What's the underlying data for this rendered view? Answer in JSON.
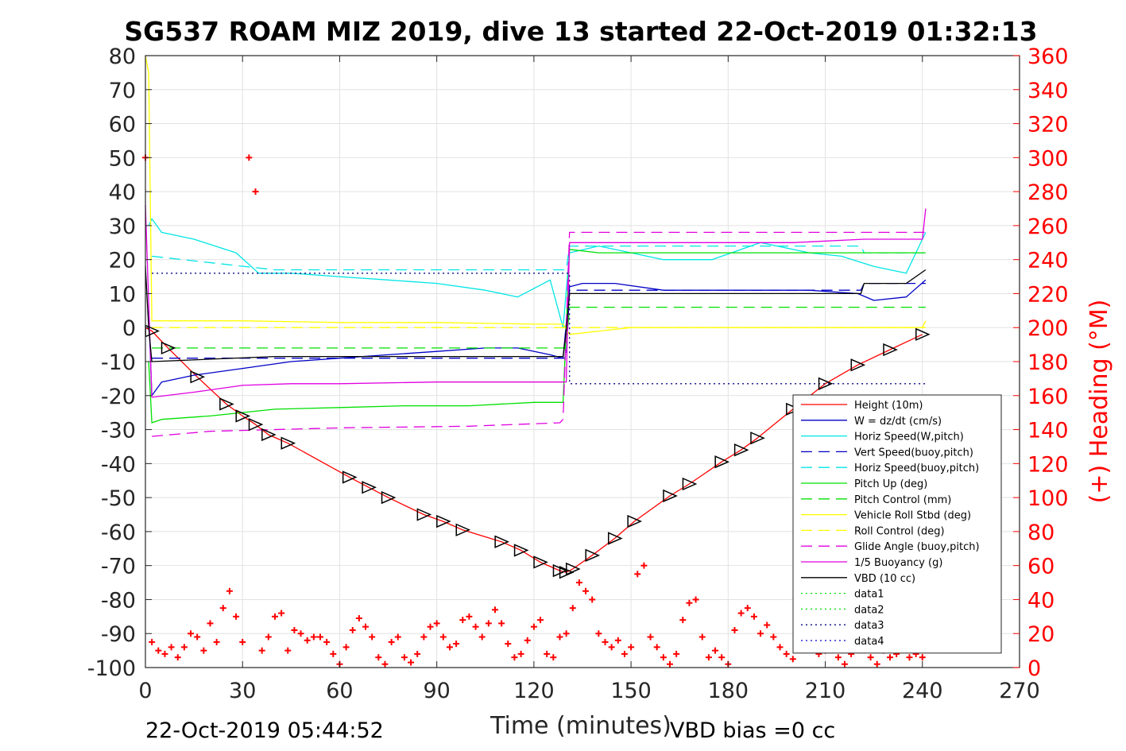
{
  "chart_data": {
    "type": "line",
    "title": "SG537 ROAM MIZ 2019, dive 13 started 22-Oct-2019 01:32:13",
    "xlabel": "Time (minutes)",
    "ylabel": "",
    "y2label": "(+) Heading (°M)",
    "xlim": [
      0,
      270
    ],
    "ylim": [
      -100,
      80
    ],
    "y2lim": [
      0,
      360
    ],
    "xticks": [
      0,
      30,
      60,
      90,
      120,
      150,
      180,
      210,
      240,
      270
    ],
    "yticks": [
      -100,
      -90,
      -80,
      -70,
      -60,
      -50,
      -40,
      -30,
      -20,
      -10,
      0,
      10,
      20,
      30,
      40,
      50,
      60,
      70,
      80
    ],
    "y2ticks": [
      0,
      20,
      40,
      60,
      80,
      100,
      120,
      140,
      160,
      180,
      200,
      220,
      240,
      260,
      280,
      300,
      320,
      340,
      360
    ],
    "grid": true,
    "legend_position": "lower-right",
    "footer_left": "22-Oct-2019 05:44:52",
    "footer_right": "VBD bias =0 cc",
    "colors": {
      "red": "#ff0000",
      "blue": "#0000c8",
      "cyan": "#00e5e5",
      "green": "#00e000",
      "yellow": "#ffff00",
      "magenta": "#e000e0",
      "black": "#000000"
    },
    "series": [
      {
        "name": "Height (10m)",
        "color": "#ff0000",
        "style": "solid",
        "x": [
          0,
          2,
          7,
          16,
          25,
          30,
          34,
          38,
          44,
          63,
          69,
          75,
          86,
          92,
          98,
          110,
          116,
          122,
          128,
          130,
          132,
          138,
          145,
          151,
          162,
          168,
          178,
          184,
          189,
          200,
          210,
          220,
          230,
          240
        ],
        "y": [
          0,
          -1,
          -6,
          -14.5,
          -22.5,
          -26,
          -28.5,
          -31.5,
          -34,
          -44,
          -47,
          -50,
          -55,
          -57,
          -59.5,
          -63,
          -65.5,
          -69,
          -71.5,
          -72,
          -71,
          -67,
          -62,
          -57,
          -49.5,
          -46,
          -39.5,
          -36,
          -32.5,
          -24,
          -16.5,
          -11,
          -6.5,
          -2
        ]
      },
      {
        "name": "W = dz/dt (cm/s)",
        "color": "#0000c8",
        "style": "solid",
        "x": [
          1,
          2,
          5,
          15,
          30,
          45,
          60,
          75,
          90,
          105,
          115,
          125,
          129,
          131,
          135,
          145,
          160,
          175,
          190,
          205,
          220,
          225,
          235,
          241
        ],
        "y": [
          5,
          -20,
          -16,
          -14,
          -12,
          -10,
          -9,
          -8,
          -7,
          -6,
          -6,
          -8,
          -9,
          12,
          13,
          13,
          11,
          11,
          11,
          11,
          10,
          8,
          9,
          14
        ]
      },
      {
        "name": "Horiz Speed(W,pitch)",
        "color": "#00e5e5",
        "style": "solid",
        "x": [
          1,
          2,
          5,
          15,
          28,
          35,
          45,
          60,
          75,
          90,
          105,
          115,
          125,
          129,
          131,
          140,
          150,
          160,
          175,
          190,
          205,
          215,
          225,
          235,
          241
        ],
        "y": [
          30,
          32,
          28,
          26,
          22,
          16,
          16,
          15,
          14,
          13,
          11,
          9,
          14,
          0,
          22,
          24,
          22,
          20,
          20,
          25,
          22,
          21,
          18,
          16,
          28
        ]
      },
      {
        "name": "Vert Speed(buoy,pitch)",
        "color": "#0000c8",
        "style": "dashed",
        "x": [
          2,
          130,
          131,
          221,
          222,
          241
        ],
        "y": [
          -9,
          -9,
          11,
          11,
          13,
          13
        ]
      },
      {
        "name": "Horiz Speed(buoy,pitch)",
        "color": "#00e5e5",
        "style": "dashed",
        "x": [
          2,
          40,
          130,
          131,
          221,
          222,
          241
        ],
        "y": [
          21,
          17,
          17,
          24,
          24,
          22,
          22
        ]
      },
      {
        "name": "Pitch Up (deg)",
        "color": "#00e000",
        "style": "solid",
        "x": [
          1,
          2,
          5,
          20,
          40,
          60,
          80,
          100,
          120,
          129,
          131,
          140,
          160,
          180,
          200,
          220,
          241
        ],
        "y": [
          -10,
          -28,
          -27,
          -26,
          -24,
          -23.5,
          -23,
          -23,
          -22,
          -22,
          23,
          22,
          22,
          22,
          22,
          22,
          22
        ]
      },
      {
        "name": "Pitch Control (mm)",
        "color": "#00e000",
        "style": "dashed",
        "x": [
          2,
          130,
          131,
          221,
          222,
          241
        ],
        "y": [
          -6,
          -6,
          6,
          6,
          6,
          6
        ]
      },
      {
        "name": "Vehicle Roll Stbd (deg)",
        "color": "#ffff00",
        "style": "solid",
        "x": [
          0,
          1,
          2,
          5,
          30,
          60,
          90,
          120,
          129,
          131,
          150,
          180,
          210,
          240,
          241
        ],
        "y": [
          80,
          75,
          2,
          2,
          2,
          1.5,
          1.5,
          1,
          1,
          -2,
          0,
          0,
          0,
          0,
          2
        ]
      },
      {
        "name": "Roll Control (deg)",
        "color": "#ffff00",
        "style": "dashed",
        "x": [
          2,
          241
        ],
        "y": [
          0,
          0
        ]
      },
      {
        "name": "Glide Angle (buoy,pitch)",
        "color": "#e000e0",
        "style": "dashed",
        "x": [
          2,
          20,
          60,
          100,
          128,
          129,
          131,
          150,
          180,
          200,
          230,
          241
        ],
        "y": [
          -32,
          -30.5,
          -29.5,
          -29,
          -28,
          -27,
          28,
          28,
          28,
          28,
          28,
          28
        ]
      },
      {
        "name": "1/5 Buoyancy (g)",
        "color": "#e000e0",
        "style": "solid",
        "x": [
          0,
          2,
          15,
          30,
          45,
          60,
          90,
          128,
          130,
          131,
          160,
          200,
          222,
          223,
          240,
          241
        ],
        "y": [
          36,
          -20.5,
          -19,
          -17,
          -16.5,
          -16.5,
          -16,
          -16,
          -16,
          25,
          25,
          25,
          26,
          26,
          26,
          35
        ]
      },
      {
        "name": "VBD (10 cc)",
        "color": "#000000",
        "style": "solid",
        "x": [
          0,
          1,
          2,
          40,
          129,
          130,
          131,
          221,
          222,
          235,
          241
        ],
        "y": [
          18,
          0,
          -10,
          -8.5,
          -8.5,
          -1,
          10,
          10,
          13,
          13,
          17
        ]
      },
      {
        "name": "data1",
        "color": "#00e000",
        "style": "dotted",
        "x": [],
        "y": []
      },
      {
        "name": "data2",
        "color": "#00e000",
        "style": "dotted",
        "x": [],
        "y": []
      },
      {
        "name": "data3",
        "color": "#000080",
        "style": "dotted",
        "x": [
          2,
          131,
          131,
          241
        ],
        "y": [
          16,
          16,
          -16.5,
          -16.5
        ]
      },
      {
        "name": "data4",
        "color": "#0000c8",
        "style": "dotted",
        "x": [],
        "y": []
      }
    ],
    "heading_series": {
      "name": "Heading (°M)",
      "axis": "right",
      "color": "#ff0000",
      "marker": "+",
      "x": [
        0,
        2,
        4,
        6,
        8,
        10,
        12,
        14,
        16,
        18,
        20,
        22,
        24,
        26,
        28,
        30,
        32,
        34,
        36,
        38,
        40,
        42,
        44,
        46,
        48,
        50,
        52,
        54,
        56,
        58,
        60,
        62,
        64,
        66,
        68,
        70,
        72,
        74,
        76,
        78,
        80,
        82,
        84,
        86,
        88,
        90,
        92,
        94,
        96,
        98,
        100,
        102,
        104,
        106,
        108,
        110,
        112,
        114,
        116,
        118,
        120,
        122,
        124,
        126,
        128,
        130,
        132,
        134,
        136,
        138,
        140,
        142,
        144,
        146,
        148,
        150,
        152,
        154,
        156,
        158,
        160,
        162,
        164,
        166,
        168,
        170,
        172,
        174,
        176,
        178,
        180,
        182,
        184,
        186,
        188,
        190,
        192,
        194,
        196,
        198,
        200,
        202,
        204,
        206,
        208,
        210,
        212,
        214,
        216,
        218,
        220,
        222,
        224,
        226,
        228,
        230,
        232,
        234,
        236,
        238,
        240
      ],
      "y": [
        300,
        15,
        10,
        8,
        12,
        6,
        12,
        20,
        18,
        10,
        26,
        15,
        35,
        45,
        30,
        15,
        300,
        280,
        10,
        18,
        30,
        32,
        10,
        22,
        20,
        16,
        18,
        18,
        15,
        8,
        2,
        12,
        22,
        29,
        24,
        18,
        6,
        2,
        15,
        18,
        6,
        3,
        8,
        18,
        24,
        26,
        18,
        12,
        14,
        28,
        30,
        24,
        18,
        26,
        34,
        26,
        14,
        6,
        8,
        16,
        24,
        28,
        8,
        6,
        18,
        20,
        35,
        50,
        45,
        40,
        20,
        15,
        12,
        16,
        8,
        12,
        55,
        60,
        18,
        12,
        6,
        2,
        8,
        28,
        38,
        40,
        18,
        6,
        10,
        6,
        2,
        22,
        32,
        35,
        30,
        20,
        25,
        18,
        12,
        8,
        5,
        28,
        35,
        22,
        8,
        10,
        12,
        6,
        2,
        8,
        12,
        18,
        6,
        2,
        10,
        6,
        8,
        12,
        6,
        8,
        6
      ]
    }
  }
}
